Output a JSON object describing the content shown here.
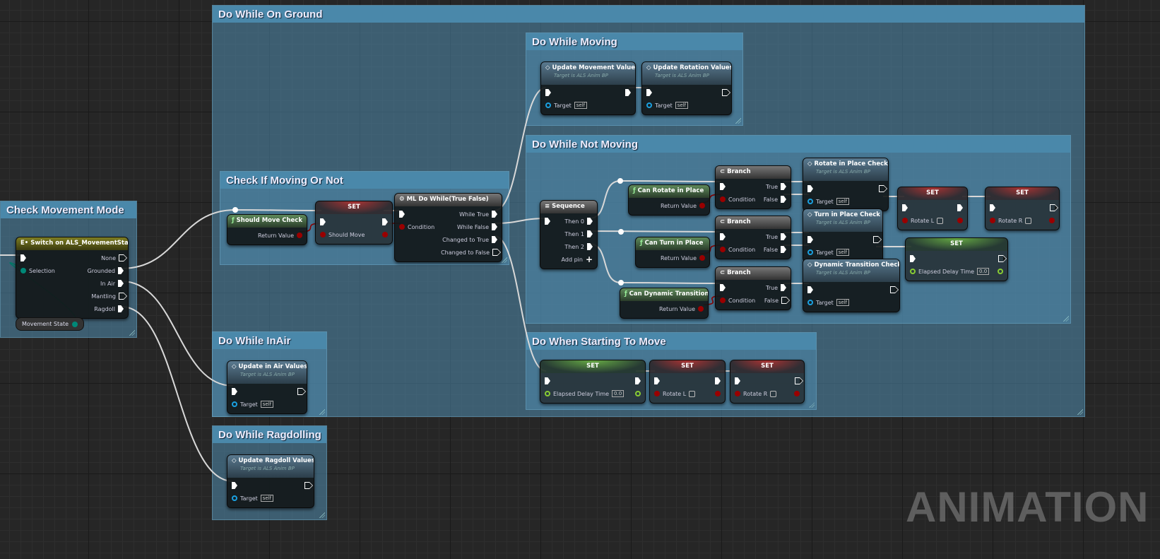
{
  "watermark": "ANIMATION",
  "comments": [
    {
      "id": "ground",
      "title": "Do While On Ground"
    },
    {
      "id": "moving",
      "title": "Do While Moving"
    },
    {
      "id": "notmoving",
      "title": "Do While Not Moving"
    },
    {
      "id": "check",
      "title": "Check If Moving Or Not"
    },
    {
      "id": "mode",
      "title": "Check Movement Mode"
    },
    {
      "id": "inair",
      "title": "Do While InAir"
    },
    {
      "id": "starting",
      "title": "Do When Starting To Move"
    },
    {
      "id": "ragdoll",
      "title": "Do While Ragdolling"
    }
  ],
  "colors": {
    "comment_header": "#4a88aa",
    "exec_wire": "#d8d8d8",
    "bool_pin": "#900000",
    "object_pin": "#1aa0e0",
    "float_pin": "#88cc33",
    "enum_pin": "#008877"
  },
  "getter": {
    "label": "Movement State",
    "pin": "enum"
  },
  "nodes": [
    {
      "id": "switch",
      "kind": "switch",
      "icon": "switch-icon",
      "title": "Switch on ALS_MovementState",
      "inputs": [
        {
          "type": "exec"
        },
        {
          "type": "enum",
          "label": "Selection"
        }
      ],
      "outputs": [
        {
          "type": "exec-empty",
          "label": "None"
        },
        {
          "type": "exec",
          "label": "Grounded"
        },
        {
          "type": "exec",
          "label": "In Air"
        },
        {
          "type": "exec-empty",
          "label": "Mantling"
        },
        {
          "type": "exec",
          "label": "Ragdoll"
        }
      ]
    },
    {
      "id": "shouldmove",
      "kind": "func",
      "icon": "function-icon",
      "title": "Should Move Check",
      "inputs": [],
      "outputs": [
        {
          "type": "bool",
          "label": "Return Value"
        }
      ]
    },
    {
      "id": "setshould",
      "kind": "setb",
      "title": "SET",
      "inputs": [
        {
          "type": "exec"
        },
        {
          "type": "bool",
          "label": "Should Move"
        }
      ],
      "outputs": [
        {
          "type": "exec"
        },
        {
          "type": "bool"
        }
      ]
    },
    {
      "id": "dowhile",
      "kind": "macro",
      "icon": "macro-gear-icon",
      "title": "ML Do While(True False)",
      "inputs": [
        {
          "type": "exec"
        },
        {
          "type": "bool",
          "label": "Condition"
        }
      ],
      "outputs": [
        {
          "type": "exec",
          "label": "While True"
        },
        {
          "type": "exec",
          "label": "While False"
        },
        {
          "type": "exec",
          "label": "Changed to True"
        },
        {
          "type": "exec-empty",
          "label": "Changed to False"
        }
      ]
    },
    {
      "id": "updmove",
      "kind": "call",
      "icon": "call-function-icon",
      "title": "Update Movement Values",
      "subtitle": "Target is ALS Anim BP",
      "inputs": [
        {
          "type": "exec"
        },
        {
          "type": "object",
          "label": "Target",
          "value": "self"
        }
      ],
      "outputs": [
        {
          "type": "exec"
        }
      ]
    },
    {
      "id": "updrot",
      "kind": "call",
      "icon": "call-function-icon",
      "title": "Update Rotation Values",
      "subtitle": "Target is ALS Anim BP",
      "inputs": [
        {
          "type": "exec"
        },
        {
          "type": "object",
          "label": "Target",
          "value": "self"
        }
      ],
      "outputs": [
        {
          "type": "exec-empty"
        }
      ]
    },
    {
      "id": "sequence",
      "kind": "flow",
      "icon": "sequence-icon",
      "title": "Sequence",
      "inputs": [
        {
          "type": "exec"
        }
      ],
      "outputs": [
        {
          "type": "exec",
          "label": "Then 0"
        },
        {
          "type": "exec",
          "label": "Then 1"
        },
        {
          "type": "exec",
          "label": "Then 2"
        },
        {
          "type": "add",
          "label": "Add pin"
        }
      ]
    },
    {
      "id": "canrot",
      "kind": "func",
      "icon": "function-icon",
      "title": "Can Rotate in Place",
      "inputs": [],
      "outputs": [
        {
          "type": "bool",
          "label": "Return Value"
        }
      ]
    },
    {
      "id": "branch1",
      "kind": "flow",
      "icon": "branch-icon",
      "title": "Branch",
      "inputs": [
        {
          "type": "exec"
        },
        {
          "type": "bool",
          "label": "Condition"
        }
      ],
      "outputs": [
        {
          "type": "exec",
          "label": "True"
        },
        {
          "type": "exec",
          "label": "False"
        }
      ]
    },
    {
      "id": "rotcheck",
      "kind": "call",
      "icon": "call-function-icon",
      "title": "Rotate in Place Check",
      "subtitle": "Target is ALS Anim BP",
      "inputs": [
        {
          "type": "exec"
        },
        {
          "type": "object",
          "label": "Target",
          "value": "self"
        }
      ],
      "outputs": [
        {
          "type": "exec-empty"
        }
      ]
    },
    {
      "id": "setrl1",
      "kind": "setb",
      "title": "SET",
      "inputs": [
        {
          "type": "exec"
        },
        {
          "type": "bool",
          "label": "Rotate L",
          "check": true
        }
      ],
      "outputs": [
        {
          "type": "exec"
        },
        {
          "type": "bool"
        }
      ]
    },
    {
      "id": "setrr1",
      "kind": "setb",
      "title": "SET",
      "inputs": [
        {
          "type": "exec"
        },
        {
          "type": "bool",
          "label": "Rotate R",
          "check": true
        }
      ],
      "outputs": [
        {
          "type": "exec-empty"
        },
        {
          "type": "bool"
        }
      ]
    },
    {
      "id": "branch2",
      "kind": "flow",
      "icon": "branch-icon",
      "title": "Branch",
      "inputs": [
        {
          "type": "exec"
        },
        {
          "type": "bool",
          "label": "Condition"
        }
      ],
      "outputs": [
        {
          "type": "exec",
          "label": "True"
        },
        {
          "type": "exec",
          "label": "False"
        }
      ]
    },
    {
      "id": "canturn",
      "kind": "func",
      "icon": "function-icon",
      "title": "Can Turn in Place",
      "inputs": [],
      "outputs": [
        {
          "type": "bool",
          "label": "Return Value"
        }
      ]
    },
    {
      "id": "turncheck",
      "kind": "call",
      "icon": "call-function-icon",
      "title": "Turn in Place Check",
      "subtitle": "Target is ALS Anim BP",
      "inputs": [
        {
          "type": "exec"
        },
        {
          "type": "object",
          "label": "Target",
          "value": "self"
        }
      ],
      "outputs": [
        {
          "type": "exec-empty"
        }
      ]
    },
    {
      "id": "setdelay1",
      "kind": "setf",
      "title": "SET",
      "inputs": [
        {
          "type": "exec"
        },
        {
          "type": "float",
          "label": "Elapsed Delay Time",
          "value": "0.0"
        }
      ],
      "outputs": [
        {
          "type": "exec-empty"
        },
        {
          "type": "float"
        }
      ]
    },
    {
      "id": "branch3",
      "kind": "flow",
      "icon": "branch-icon",
      "title": "Branch",
      "inputs": [
        {
          "type": "exec"
        },
        {
          "type": "bool",
          "label": "Condition"
        }
      ],
      "outputs": [
        {
          "type": "exec",
          "label": "True"
        },
        {
          "type": "exec-empty",
          "label": "False"
        }
      ]
    },
    {
      "id": "candyn",
      "kind": "func",
      "icon": "function-icon",
      "title": "Can Dynamic Transition",
      "inputs": [],
      "outputs": [
        {
          "type": "bool",
          "label": "Return Value"
        }
      ]
    },
    {
      "id": "dyncheck",
      "kind": "call",
      "icon": "call-function-icon",
      "title": "Dynamic Transition Check",
      "subtitle": "Target is ALS Anim BP",
      "inputs": [
        {
          "type": "exec"
        },
        {
          "type": "object",
          "label": "Target",
          "value": "self"
        }
      ],
      "outputs": [
        {
          "type": "exec-empty"
        }
      ]
    },
    {
      "id": "setdelay2",
      "kind": "setf",
      "title": "SET",
      "inputs": [
        {
          "type": "exec"
        },
        {
          "type": "float",
          "label": "Elapsed Delay Time",
          "value": "0.0"
        }
      ],
      "outputs": [
        {
          "type": "exec"
        },
        {
          "type": "float"
        }
      ]
    },
    {
      "id": "setrl2",
      "kind": "setb",
      "title": "SET",
      "inputs": [
        {
          "type": "exec"
        },
        {
          "type": "bool",
          "label": "Rotate L",
          "check": true
        }
      ],
      "outputs": [
        {
          "type": "exec"
        },
        {
          "type": "bool"
        }
      ]
    },
    {
      "id": "setrr2",
      "kind": "setb",
      "title": "SET",
      "inputs": [
        {
          "type": "exec"
        },
        {
          "type": "bool",
          "label": "Rotate R",
          "check": true
        }
      ],
      "outputs": [
        {
          "type": "exec-empty"
        },
        {
          "type": "bool"
        }
      ]
    },
    {
      "id": "updair",
      "kind": "call",
      "icon": "call-function-icon",
      "title": "Update in Air Values",
      "subtitle": "Target is ALS Anim BP",
      "inputs": [
        {
          "type": "exec"
        },
        {
          "type": "object",
          "label": "Target",
          "value": "self"
        }
      ],
      "outputs": [
        {
          "type": "exec-empty"
        }
      ]
    },
    {
      "id": "updrag",
      "kind": "call",
      "icon": "call-function-icon",
      "title": "Update Ragdoll Values",
      "subtitle": "Target is ALS Anim BP",
      "inputs": [
        {
          "type": "exec"
        },
        {
          "type": "object",
          "label": "Target",
          "value": "self"
        }
      ],
      "outputs": [
        {
          "type": "exec-empty"
        }
      ]
    }
  ]
}
